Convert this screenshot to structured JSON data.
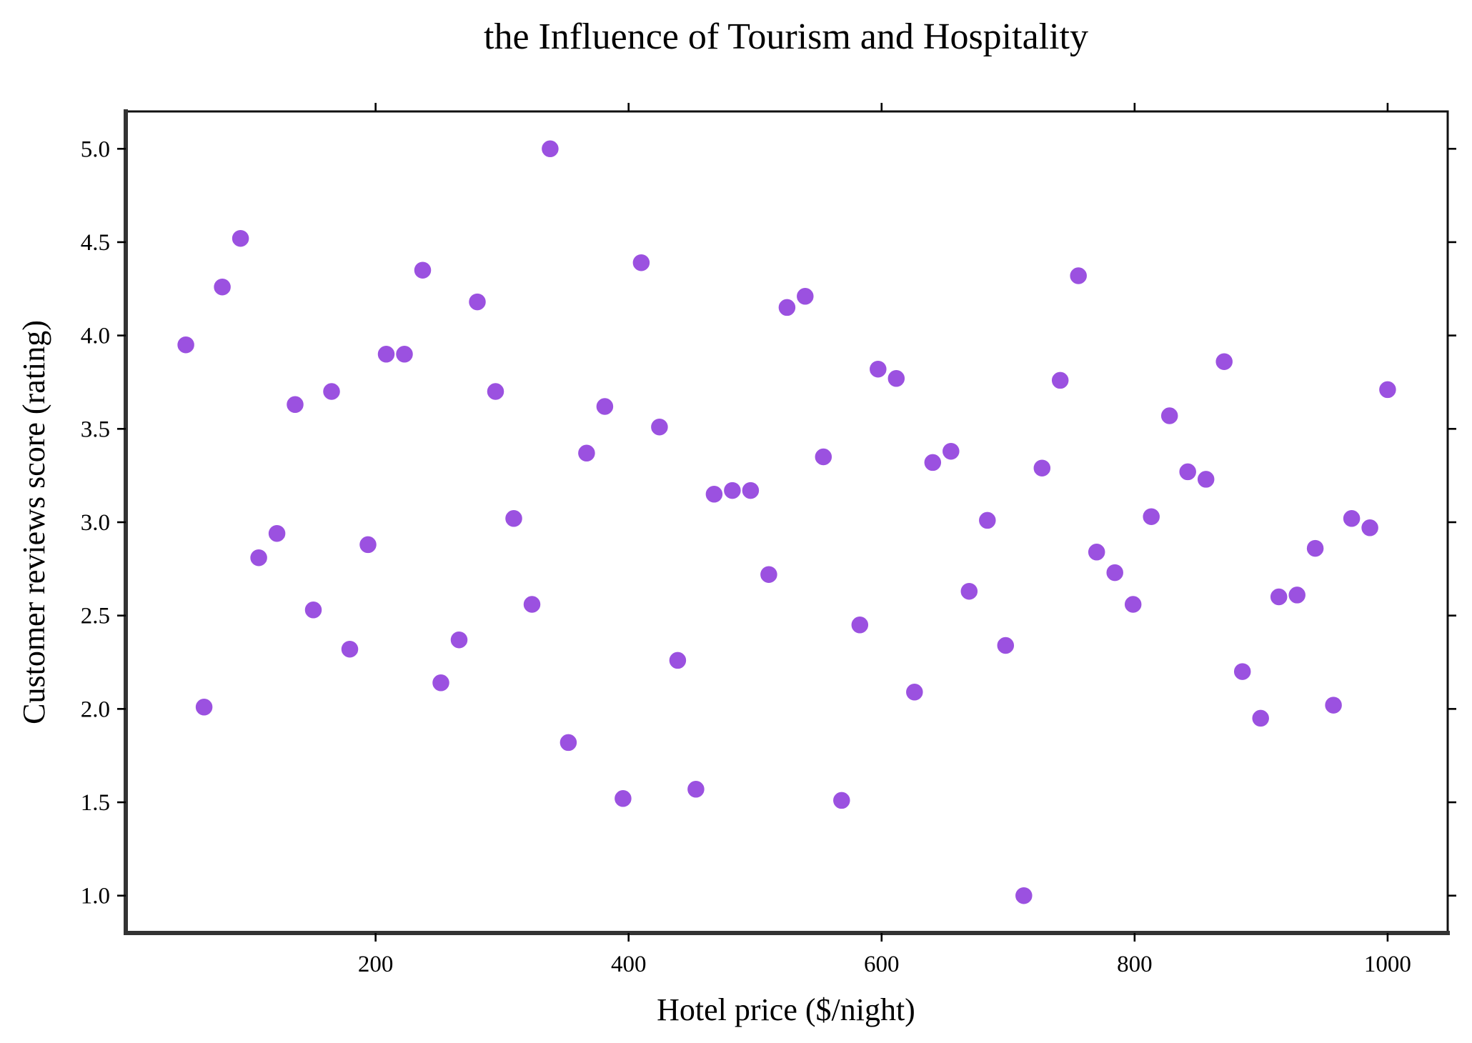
{
  "chart_data": {
    "type": "scatter",
    "title": "the Influence of Tourism and Hospitality",
    "xlabel": "Hotel price ($/night)",
    "ylabel": "Customer reviews score (rating)",
    "xlim": [
      2.5,
      1047.5
    ],
    "ylim": [
      0.8,
      5.2
    ],
    "xticks": [
      200,
      400,
      600,
      800,
      1000
    ],
    "yticks": [
      1.0,
      1.5,
      2.0,
      2.5,
      3.0,
      3.5,
      4.0,
      4.5,
      5.0
    ],
    "xtick_labels": [
      "200",
      "400",
      "600",
      "800",
      "1000"
    ],
    "ytick_labels": [
      "1.0",
      "1.5",
      "2.0",
      "2.5",
      "3.0",
      "3.5",
      "4.0",
      "4.5",
      "5.0"
    ],
    "grid": false,
    "marker_color": "#9b51e0",
    "points": [
      [
        50,
        3.95
      ],
      [
        64.4,
        2.01
      ],
      [
        78.8,
        4.26
      ],
      [
        93.2,
        4.52
      ],
      [
        107.6,
        2.81
      ],
      [
        122,
        2.94
      ],
      [
        136.4,
        3.63
      ],
      [
        150.8,
        2.53
      ],
      [
        165.2,
        3.7
      ],
      [
        179.6,
        2.32
      ],
      [
        194,
        2.88
      ],
      [
        208.4,
        3.9
      ],
      [
        222.8,
        3.9
      ],
      [
        237.2,
        4.35
      ],
      [
        251.6,
        2.14
      ],
      [
        266,
        2.37
      ],
      [
        280.4,
        4.18
      ],
      [
        294.8,
        3.7
      ],
      [
        309.2,
        3.02
      ],
      [
        323.6,
        2.56
      ],
      [
        338,
        5.0
      ],
      [
        352.4,
        1.82
      ],
      [
        366.8,
        3.37
      ],
      [
        381.2,
        3.62
      ],
      [
        395.6,
        1.52
      ],
      [
        410,
        4.39
      ],
      [
        424.4,
        3.51
      ],
      [
        438.8,
        2.26
      ],
      [
        453.2,
        1.57
      ],
      [
        467.6,
        3.15
      ],
      [
        482,
        3.17
      ],
      [
        496.4,
        3.17
      ],
      [
        510.8,
        2.72
      ],
      [
        525.2,
        4.15
      ],
      [
        539.6,
        4.21
      ],
      [
        554,
        3.35
      ],
      [
        568.4,
        1.51
      ],
      [
        582.8,
        2.45
      ],
      [
        597.2,
        3.82
      ],
      [
        611.6,
        3.77
      ],
      [
        626,
        2.09
      ],
      [
        640.4,
        3.32
      ],
      [
        654.8,
        3.38
      ],
      [
        669.2,
        2.63
      ],
      [
        683.6,
        3.01
      ],
      [
        698,
        2.34
      ],
      [
        712.4,
        1.0
      ],
      [
        726.8,
        3.29
      ],
      [
        741.2,
        3.76
      ],
      [
        755.6,
        4.32
      ],
      [
        770,
        2.84
      ],
      [
        784.4,
        2.73
      ],
      [
        798.8,
        2.56
      ],
      [
        813.2,
        3.03
      ],
      [
        827.6,
        3.57
      ],
      [
        842,
        3.27
      ],
      [
        856.4,
        3.23
      ],
      [
        870.8,
        3.86
      ],
      [
        885.2,
        2.2
      ],
      [
        899.6,
        1.95
      ],
      [
        914,
        2.6
      ],
      [
        928.4,
        2.61
      ],
      [
        942.8,
        2.86
      ],
      [
        957.2,
        2.02
      ],
      [
        971.6,
        3.02
      ],
      [
        986,
        2.97
      ],
      [
        1000,
        3.71
      ]
    ]
  }
}
